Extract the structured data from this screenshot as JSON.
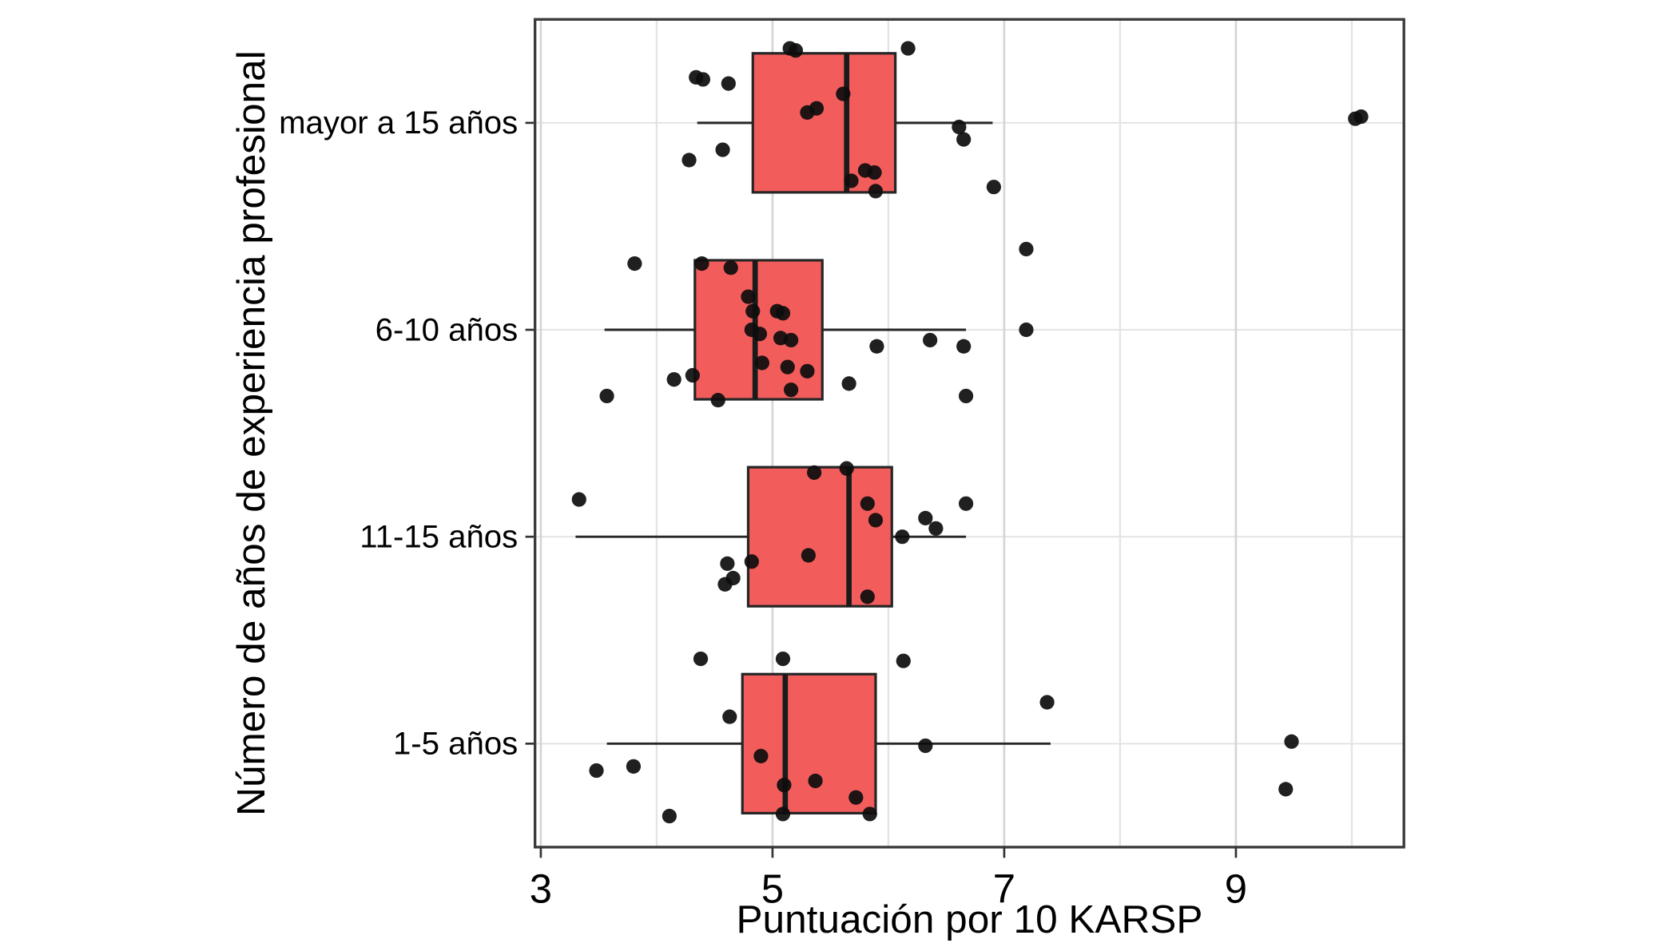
{
  "chart_data": {
    "type": "boxplot",
    "orientation": "horizontal",
    "title": "",
    "xlabel": "Puntuación por 10 KARSP",
    "ylabel": "Número de años de experiencia profesional",
    "x_ticks": [
      3,
      5,
      7,
      9
    ],
    "x_gridlines_minor": [
      4,
      6,
      8,
      10
    ],
    "xlim": [
      2.95,
      10.45
    ],
    "grid": "on",
    "legend": "none",
    "style": {
      "box_fill": "#F25D5C",
      "box_stroke": "#262626",
      "median_stroke": "#1A1A1A",
      "point_color": "#0D0D0D",
      "grid_major": "#D5D5D5",
      "grid_minor": "#E4E4E4",
      "panel_border": "#3A3A3A",
      "axis_color": "#333333",
      "background": "#FFFFFF"
    },
    "groups": [
      {
        "label": "mayor a 15 años",
        "whisker_low": 4.35,
        "q1": 4.83,
        "median": 5.64,
        "q3": 6.06,
        "whisker_high": 6.9,
        "points": [
          [
            5.15,
            -0.36
          ],
          [
            5.2,
            -0.35
          ],
          [
            6.17,
            -0.36
          ],
          [
            4.34,
            -0.22
          ],
          [
            4.4,
            -0.21
          ],
          [
            4.62,
            -0.19
          ],
          [
            5.61,
            -0.14
          ],
          [
            5.38,
            -0.07
          ],
          [
            5.3,
            -0.05
          ],
          [
            10.03,
            -0.02
          ],
          [
            10.08,
            -0.03
          ],
          [
            6.61,
            0.02
          ],
          [
            6.65,
            0.08
          ],
          [
            4.57,
            0.13
          ],
          [
            4.28,
            0.18
          ],
          [
            5.8,
            0.23
          ],
          [
            5.88,
            0.24
          ],
          [
            5.68,
            0.28
          ],
          [
            6.91,
            0.31
          ],
          [
            5.89,
            0.33
          ]
        ]
      },
      {
        "label": "6-10 años",
        "whisker_low": 3.55,
        "q1": 4.33,
        "median": 4.85,
        "q3": 5.43,
        "whisker_high": 6.67,
        "points": [
          [
            3.81,
            -0.32
          ],
          [
            4.39,
            -0.32
          ],
          [
            4.64,
            -0.3
          ],
          [
            4.79,
            -0.16
          ],
          [
            4.83,
            -0.09
          ],
          [
            5.04,
            -0.09
          ],
          [
            5.09,
            -0.08
          ],
          [
            4.82,
            0.0
          ],
          [
            4.89,
            0.02
          ],
          [
            5.07,
            0.04
          ],
          [
            5.16,
            0.05
          ],
          [
            5.9,
            0.08
          ],
          [
            6.36,
            0.05
          ],
          [
            6.65,
            0.08
          ],
          [
            4.91,
            0.16
          ],
          [
            5.13,
            0.18
          ],
          [
            5.3,
            0.2
          ],
          [
            4.31,
            0.22
          ],
          [
            4.15,
            0.24
          ],
          [
            5.66,
            0.26
          ],
          [
            5.16,
            0.29
          ],
          [
            3.57,
            0.32
          ],
          [
            4.53,
            0.34
          ],
          [
            6.67,
            0.32
          ],
          [
            7.19,
            -0.39
          ],
          [
            7.19,
            0.0
          ]
        ]
      },
      {
        "label": "11-15 años",
        "whisker_low": 3.3,
        "q1": 4.79,
        "median": 5.66,
        "q3": 6.03,
        "whisker_high": 6.67,
        "points": [
          [
            3.33,
            -0.18
          ],
          [
            5.36,
            -0.31
          ],
          [
            5.64,
            -0.33
          ],
          [
            5.82,
            -0.16
          ],
          [
            5.89,
            -0.08
          ],
          [
            6.12,
            0.0
          ],
          [
            6.32,
            -0.09
          ],
          [
            6.41,
            -0.04
          ],
          [
            6.67,
            -0.16
          ],
          [
            5.31,
            0.09
          ],
          [
            4.82,
            0.12
          ],
          [
            4.61,
            0.13
          ],
          [
            4.66,
            0.2
          ],
          [
            4.59,
            0.23
          ],
          [
            5.82,
            0.29
          ]
        ]
      },
      {
        "label": "1-5 años",
        "whisker_low": 3.57,
        "q1": 4.74,
        "median": 5.11,
        "q3": 5.89,
        "whisker_high": 7.4,
        "points": [
          [
            4.38,
            -0.41
          ],
          [
            5.09,
            -0.41
          ],
          [
            6.13,
            -0.4
          ],
          [
            4.63,
            -0.13
          ],
          [
            7.37,
            -0.2
          ],
          [
            6.32,
            0.01
          ],
          [
            9.48,
            -0.01
          ],
          [
            4.9,
            0.06
          ],
          [
            3.48,
            0.13
          ],
          [
            3.8,
            0.11
          ],
          [
            5.1,
            0.2
          ],
          [
            5.37,
            0.18
          ],
          [
            5.72,
            0.26
          ],
          [
            4.11,
            0.35
          ],
          [
            5.09,
            0.34
          ],
          [
            5.84,
            0.34
          ],
          [
            9.43,
            0.22
          ]
        ]
      }
    ]
  }
}
